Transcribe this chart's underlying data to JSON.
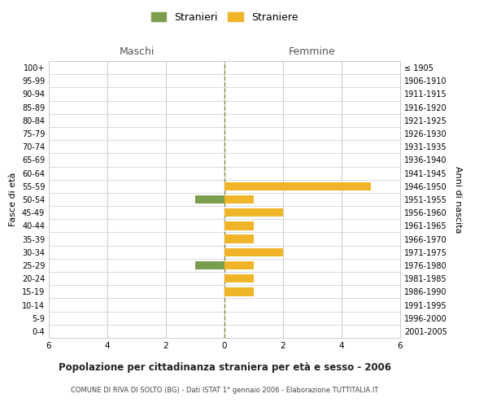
{
  "age_groups": [
    "100+",
    "95-99",
    "90-94",
    "85-89",
    "80-84",
    "75-79",
    "70-74",
    "65-69",
    "60-64",
    "55-59",
    "50-54",
    "45-49",
    "40-44",
    "35-39",
    "30-34",
    "25-29",
    "20-24",
    "15-19",
    "10-14",
    "5-9",
    "0-4"
  ],
  "birth_years": [
    "≤ 1905",
    "1906-1910",
    "1911-1915",
    "1916-1920",
    "1921-1925",
    "1926-1930",
    "1931-1935",
    "1936-1940",
    "1941-1945",
    "1946-1950",
    "1951-1955",
    "1956-1960",
    "1961-1965",
    "1966-1970",
    "1971-1975",
    "1976-1980",
    "1981-1985",
    "1986-1990",
    "1991-1995",
    "1996-2000",
    "2001-2005"
  ],
  "maschi": [
    0,
    0,
    0,
    0,
    0,
    0,
    0,
    0,
    0,
    0,
    -1,
    0,
    0,
    0,
    0,
    -1,
    0,
    0,
    0,
    0,
    0
  ],
  "femmine": [
    0,
    0,
    0,
    0,
    0,
    0,
    0,
    0,
    0,
    5,
    1,
    2,
    1,
    1,
    2,
    1,
    1,
    1,
    0,
    0,
    0
  ],
  "color_maschi": "#7a9e4e",
  "color_femmine": "#f0b429",
  "color_grid": "#cccccc",
  "color_center_line": "#888844",
  "bg_color": "#ffffff",
  "title": "Popolazione per cittadinanza straniera per età e sesso - 2006",
  "subtitle": "COMUNE DI RIVA DI SOLTO (BG) - Dati ISTAT 1° gennaio 2006 - Elaborazione TUTTITALIA.IT",
  "ylabel_left": "Fasce di età",
  "ylabel_right": "Anni di nascita",
  "xlabel_left": "Maschi",
  "xlabel_right": "Femmine",
  "legend_maschi": "Stranieri",
  "legend_femmine": "Straniere",
  "xlim": [
    -6,
    6
  ],
  "xticks": [
    -6,
    -4,
    -2,
    0,
    2,
    4,
    6
  ],
  "xticklabels": [
    "6",
    "4",
    "2",
    "0",
    "2",
    "4",
    "6"
  ],
  "bar_height": 0.65
}
